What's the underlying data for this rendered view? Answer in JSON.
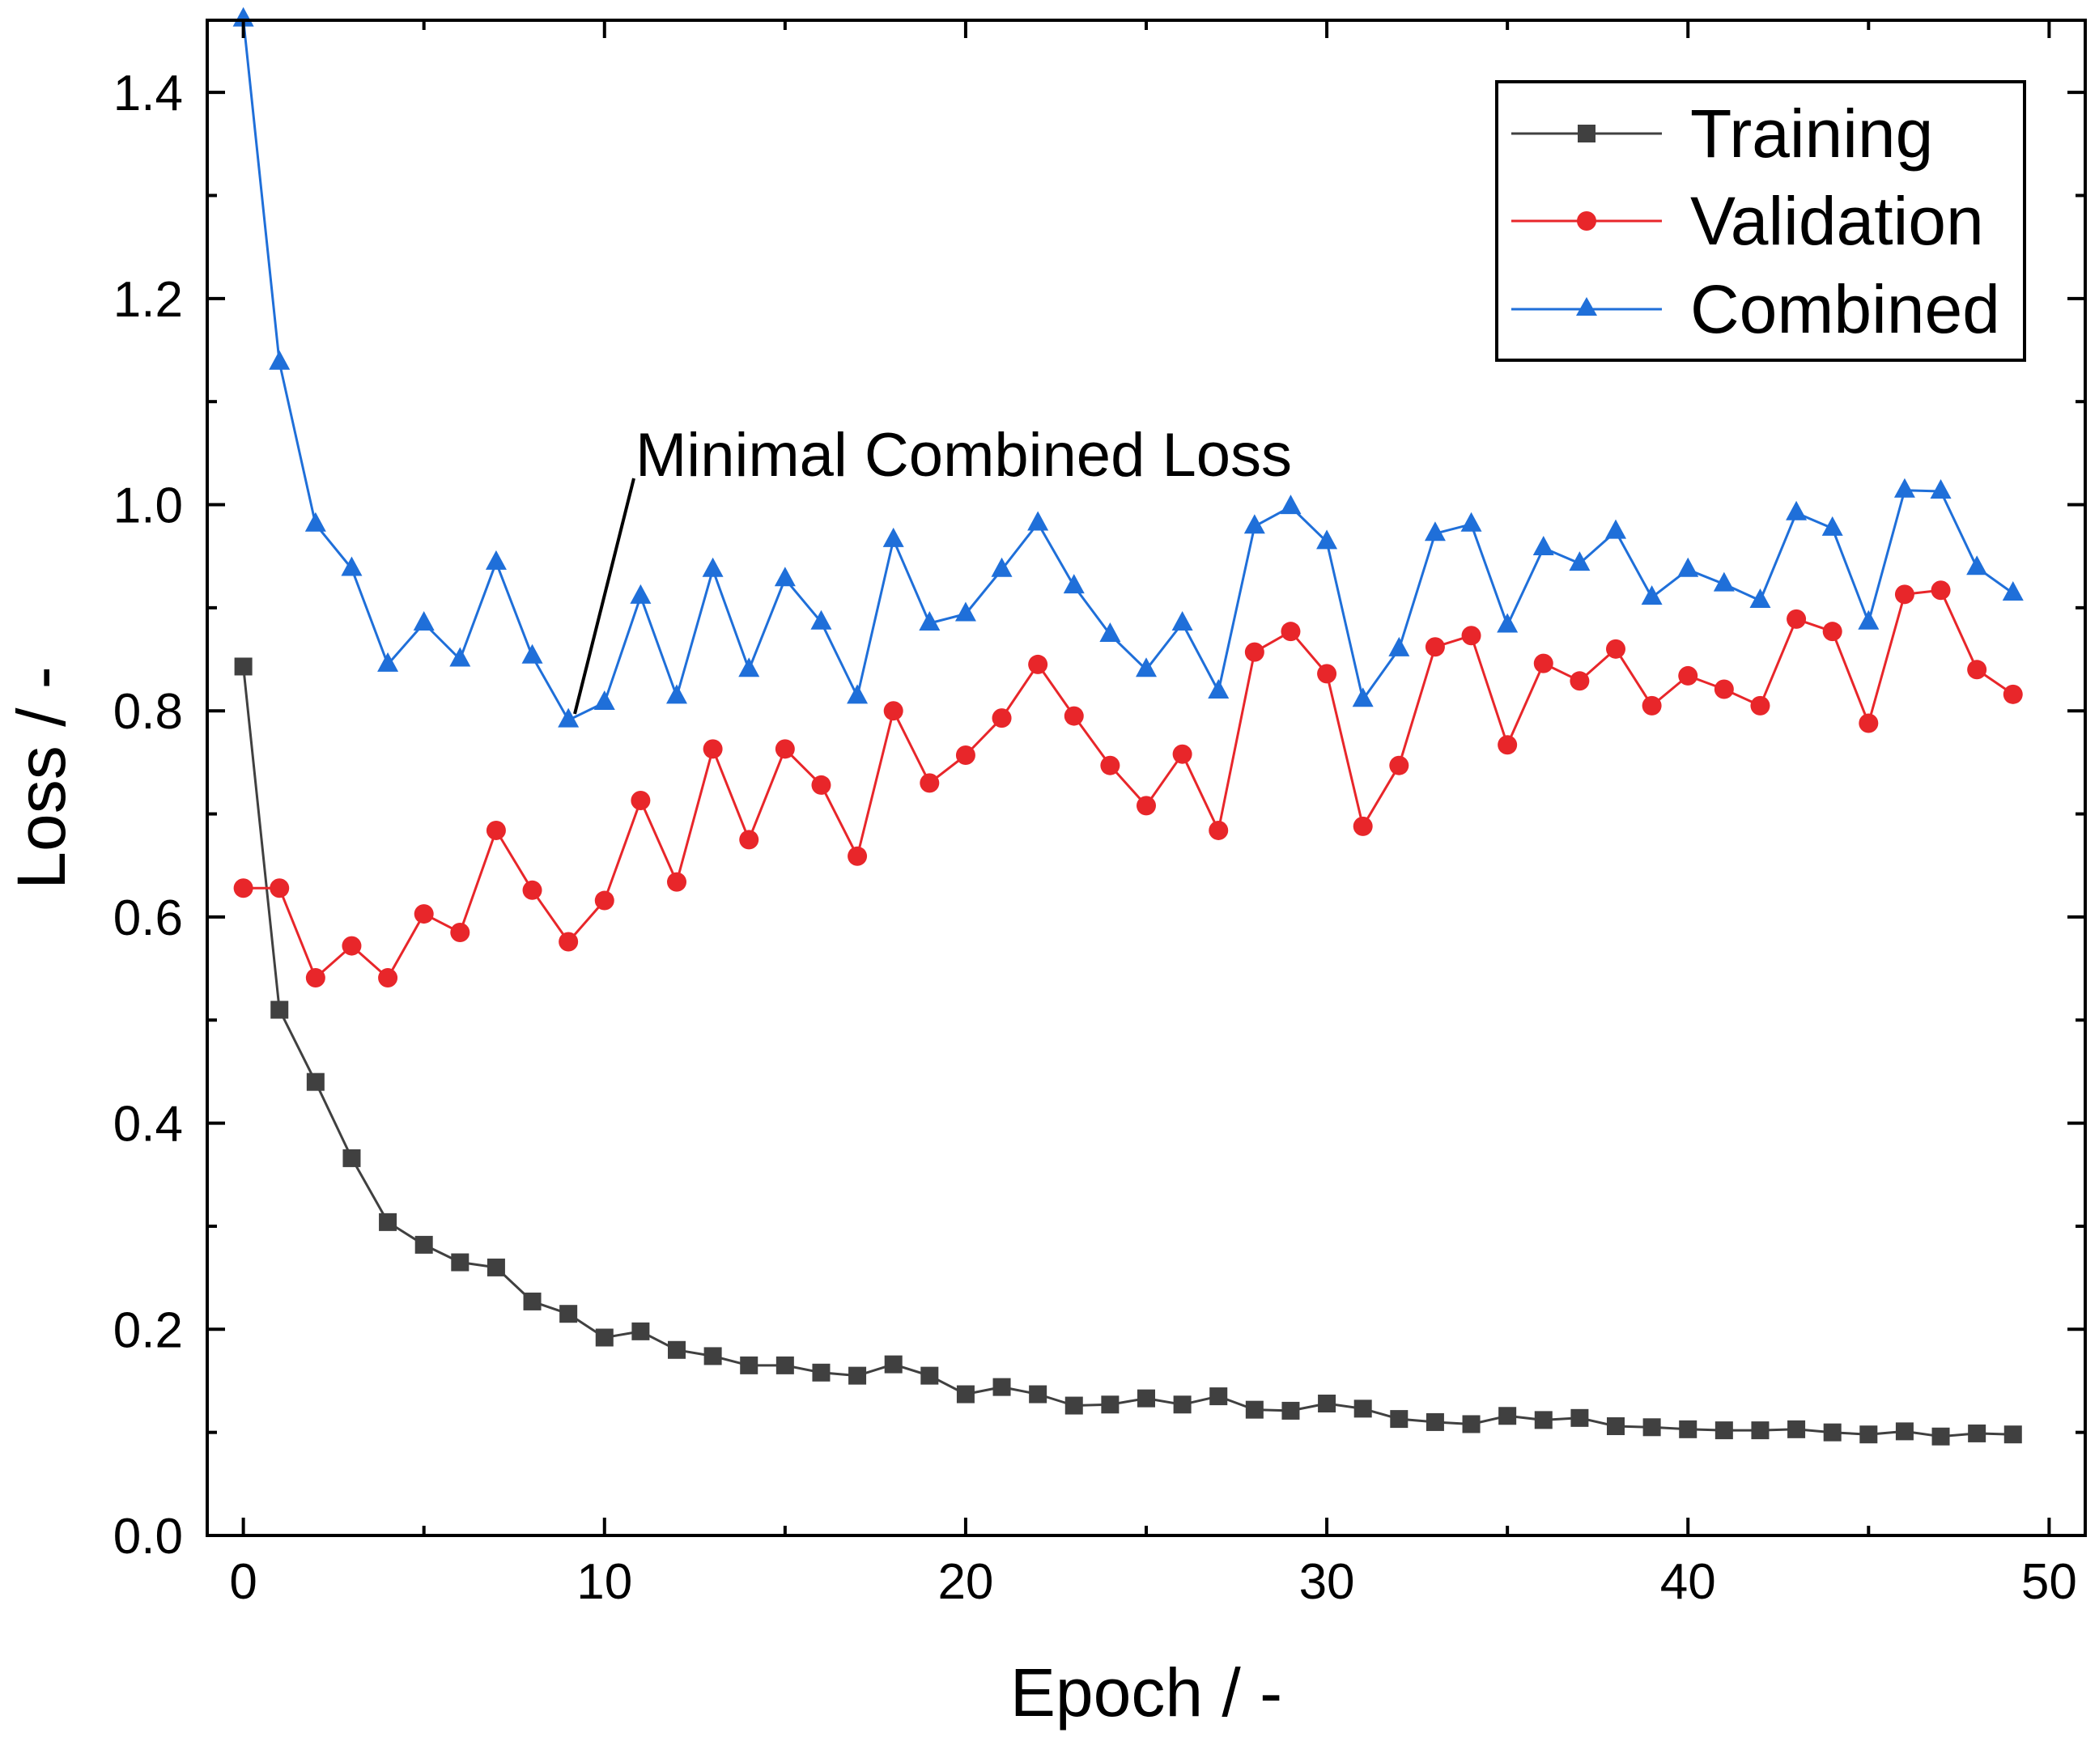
{
  "chart_data": {
    "type": "line",
    "title": "",
    "xlabel": "Epoch / -",
    "ylabel": "Loss / -",
    "xlim": [
      -1,
      51
    ],
    "ylim": [
      0,
      1.47
    ],
    "x_major_ticks": [
      0,
      10,
      20,
      30,
      40,
      50
    ],
    "x_tick_labels": [
      "0",
      "10",
      "20",
      "30",
      "40",
      "50"
    ],
    "x_minor_ticks": [
      5,
      15,
      25,
      35,
      45
    ],
    "y_major_ticks": [
      0,
      0.2,
      0.4,
      0.6,
      0.8,
      1.0,
      1.2,
      1.4
    ],
    "y_tick_labels": [
      "0.0",
      "0.2",
      "0.4",
      "0.6",
      "0.8",
      "1.0",
      "1.2",
      "1.4"
    ],
    "y_minor_ticks": [
      0.1,
      0.3,
      0.5,
      0.7,
      0.9,
      1.1,
      1.3
    ],
    "grid": false,
    "legend_position": "top-right",
    "x": [
      0,
      1,
      2,
      3,
      4,
      5,
      6,
      7,
      8,
      9,
      10,
      11,
      12,
      13,
      14,
      15,
      16,
      17,
      18,
      19,
      20,
      21,
      22,
      23,
      24,
      25,
      26,
      27,
      28,
      29,
      30,
      31,
      32,
      33,
      34,
      35,
      36,
      37,
      38,
      39,
      40,
      41,
      42,
      43,
      44,
      45,
      46,
      47,
      48,
      49
    ],
    "series": [
      {
        "name": "Training",
        "color": "#404040",
        "marker": "square",
        "values": [
          0.843,
          0.51,
          0.44,
          0.366,
          0.304,
          0.282,
          0.265,
          0.26,
          0.227,
          0.215,
          0.192,
          0.198,
          0.18,
          0.174,
          0.165,
          0.165,
          0.158,
          0.155,
          0.166,
          0.155,
          0.137,
          0.144,
          0.137,
          0.126,
          0.127,
          0.133,
          0.127,
          0.135,
          0.122,
          0.121,
          0.128,
          0.123,
          0.113,
          0.11,
          0.108,
          0.116,
          0.112,
          0.114,
          0.106,
          0.105,
          0.103,
          0.102,
          0.102,
          0.103,
          0.1,
          0.098,
          0.101,
          0.096,
          0.099,
          0.098
        ]
      },
      {
        "name": "Validation",
        "color": "#e8262a",
        "marker": "circle",
        "values": [
          0.628,
          0.628,
          0.541,
          0.572,
          0.541,
          0.603,
          0.585,
          0.684,
          0.626,
          0.576,
          0.616,
          0.713,
          0.634,
          0.763,
          0.675,
          0.763,
          0.728,
          0.659,
          0.8,
          0.73,
          0.757,
          0.793,
          0.845,
          0.795,
          0.747,
          0.708,
          0.758,
          0.684,
          0.857,
          0.877,
          0.836,
          0.688,
          0.747,
          0.862,
          0.873,
          0.767,
          0.846,
          0.829,
          0.86,
          0.805,
          0.834,
          0.821,
          0.805,
          0.889,
          0.877,
          0.788,
          0.913,
          0.917,
          0.84,
          0.816
        ]
      },
      {
        "name": "Combined",
        "color": "#1f6fd9",
        "marker": "triangle",
        "values": [
          1.471,
          1.138,
          0.981,
          0.938,
          0.845,
          0.885,
          0.85,
          0.944,
          0.853,
          0.791,
          0.808,
          0.911,
          0.814,
          0.937,
          0.84,
          0.928,
          0.886,
          0.814,
          0.966,
          0.885,
          0.894,
          0.937,
          0.982,
          0.921,
          0.874,
          0.84,
          0.885,
          0.819,
          0.979,
          0.998,
          0.964,
          0.811,
          0.86,
          0.972,
          0.981,
          0.883,
          0.958,
          0.943,
          0.974,
          0.91,
          0.937,
          0.923,
          0.907,
          0.992,
          0.977,
          0.886,
          1.014,
          1.013,
          0.939,
          0.914
        ]
      }
    ],
    "annotations": [
      {
        "text": "Minimal Combined Loss",
        "target_x": 9,
        "target_y": 0.791
      }
    ]
  }
}
